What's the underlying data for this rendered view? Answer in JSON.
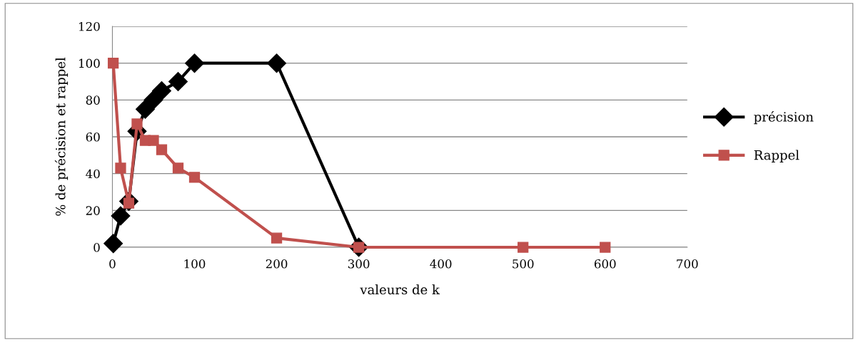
{
  "chart_data": {
    "type": "line",
    "xlabel": "valeurs de k",
    "ylabel": "% de précision et rappel",
    "series": [
      {
        "name": "précision",
        "color": "#000000",
        "marker": "diamond",
        "x": [
          1,
          10,
          20,
          30,
          40,
          50,
          60,
          80,
          100,
          200,
          300
        ],
        "values": [
          2,
          17,
          25,
          63,
          75,
          80,
          85,
          90,
          100,
          100,
          0
        ]
      },
      {
        "name": "Rappel",
        "color": "#c0504d",
        "marker": "square",
        "x": [
          1,
          10,
          20,
          30,
          40,
          50,
          60,
          80,
          100,
          200,
          300,
          500,
          600
        ],
        "values": [
          100,
          43,
          24,
          67,
          58,
          58,
          53,
          43,
          38,
          5,
          0,
          0,
          0
        ]
      }
    ],
    "xlim": [
      0,
      700
    ],
    "xticks": [
      0,
      100,
      200,
      300,
      400,
      500,
      600,
      700
    ],
    "ylim": [
      0,
      120
    ],
    "yticks": [
      0,
      20,
      40,
      60,
      80,
      100,
      120
    ],
    "grid": "y",
    "legend": "right",
    "line_style": "solid"
  }
}
